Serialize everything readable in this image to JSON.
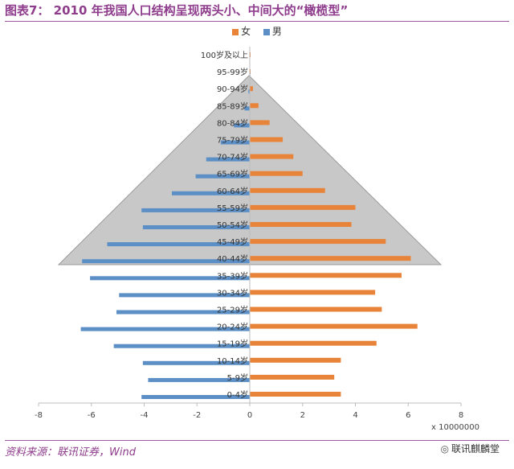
{
  "title": "图表7：  2010 年我国人口结构呈现两头小、中间大的“橄榄型”",
  "source": "资料来源：联讯证券，Wind",
  "watermark": "联讯麒麟堂",
  "watermark_icon": "wechat-icon",
  "chart_data": {
    "type": "bar",
    "orientation": "horizontal",
    "categories": [
      "0-4岁",
      "5-9岁",
      "10-14岁",
      "15-19岁",
      "20-24岁",
      "25-29岁",
      "30-34岁",
      "35-39岁",
      "40-44岁",
      "45-49岁",
      "50-54岁",
      "55-59岁",
      "60-64岁",
      "65-69岁",
      "70-74岁",
      "75-79岁",
      "80-84岁",
      "85-89岁",
      "90-94岁",
      "95-99岁",
      "100岁及以上"
    ],
    "series": [
      {
        "name": "女",
        "color": "#e8843a",
        "values": [
          3.45,
          3.2,
          3.45,
          4.8,
          6.35,
          5.0,
          4.75,
          5.75,
          6.1,
          5.15,
          3.85,
          4.0,
          2.85,
          2.0,
          1.65,
          1.25,
          0.75,
          0.33,
          0.12,
          0.03,
          0.01
        ]
      },
      {
        "name": "男",
        "color": "#5b8fc5",
        "values": [
          -4.1,
          -3.85,
          -4.05,
          -5.15,
          -6.4,
          -5.05,
          -4.95,
          -6.05,
          -6.35,
          -5.4,
          -4.05,
          -4.1,
          -2.95,
          -2.05,
          -1.65,
          -1.1,
          -0.6,
          -0.2,
          -0.05,
          -0.01,
          0.0
        ]
      }
    ],
    "xlim": [
      -8,
      8
    ],
    "xticks": [
      "-8",
      "-6",
      "-4",
      "-2",
      "0",
      "2",
      "4",
      "6",
      "8"
    ],
    "xticks_values": [
      -8,
      -6,
      -4,
      -2,
      0,
      2,
      4,
      6,
      8
    ],
    "x_unit": "x 10000000",
    "legend_position": "top",
    "overlay_color": "#c8c8c8"
  }
}
